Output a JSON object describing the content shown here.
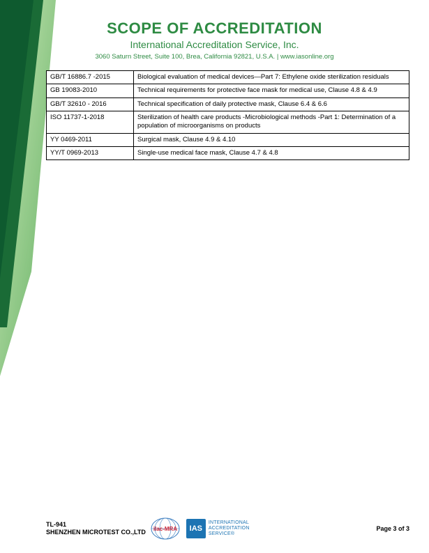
{
  "colors": {
    "green_primary": "#2e8b43",
    "green_dark": "#0e5a2f",
    "green_light": "#a6d98c",
    "ias_blue": "#1d74b3",
    "ilac_blue": "#3e7fc1",
    "text_dark": "#0a5e2e"
  },
  "header": {
    "title": "SCOPE OF ACCREDITATION",
    "subtitle": "International Accreditation Service, Inc.",
    "address": "3060 Saturn Street, Suite 100, Brea, California 92821, U.S.A.  |  www.iasonline.org"
  },
  "table": {
    "rows": [
      {
        "std": "GB/T 16886.7 -2015",
        "desc": "Biological evaluation of medical devices—Part 7: Ethylene oxide sterilization residuals"
      },
      {
        "std": "GB 19083-2010",
        "desc": "Technical requirements for protective face mask for medical use, Clause 4.8 & 4.9"
      },
      {
        "std": "GB/T 32610 - 2016",
        "desc": "Technical specification of daily protective mask, Clause 6.4 & 6.6"
      },
      {
        "std": "ISO 11737-1-2018",
        "desc": "Sterilization of health care products -Microbiological methods -Part 1: Determination of a population of microorganisms on products"
      },
      {
        "std": "YY 0469-2011",
        "desc": "Surgical mask, Clause 4.9 & 4.10"
      },
      {
        "std": "YY/T 0969-2013",
        "desc": "Single-use medical face mask, Clause 4.7 & 4.8"
      }
    ]
  },
  "footer": {
    "code": "TL-941",
    "company": "SHENZHEN MICROTEST CO.,LTD",
    "ilac": "ilac-MRA",
    "ias_box": "IAS",
    "ias_line1": "INTERNATIONAL",
    "ias_line2": "ACCREDITATION",
    "ias_line3": "SERVICE®",
    "page": "Page 3 of 3"
  }
}
